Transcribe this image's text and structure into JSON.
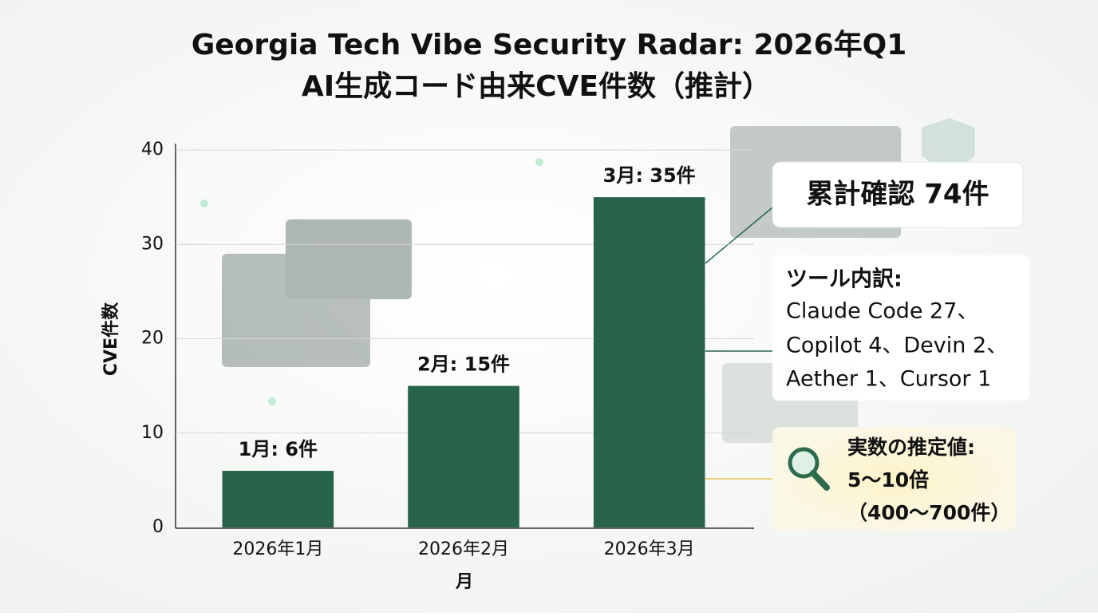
{
  "chart_data": {
    "type": "bar",
    "title": "Georgia Tech Vibe Security Radar: 2026年Q1",
    "subtitle": "AI生成コード由来CVE件数（推計）",
    "x_label": "月",
    "y_label": "CVE件数",
    "categories": [
      "2026年1月",
      "2026年2月",
      "2026年3月"
    ],
    "values": [
      6,
      15,
      35
    ],
    "value_labels": [
      "1月: 6件",
      "2月: 15件",
      "3月: 35件"
    ],
    "color": "#27644a",
    "ylim": [
      0,
      40
    ],
    "yticks": [
      0,
      10,
      20,
      30,
      40
    ],
    "grid": true,
    "annotations": {
      "total": "累計確認 74件",
      "tools_title": "ツール内訳:",
      "tools_lines": [
        "Claude Code 27、",
        "Copilot 4、Devin 2、",
        "Aether 1、Cursor 1"
      ],
      "estimate_title": "実数の推定値:",
      "estimate_lines": [
        "5〜10倍",
        "（400〜700件）"
      ]
    }
  }
}
